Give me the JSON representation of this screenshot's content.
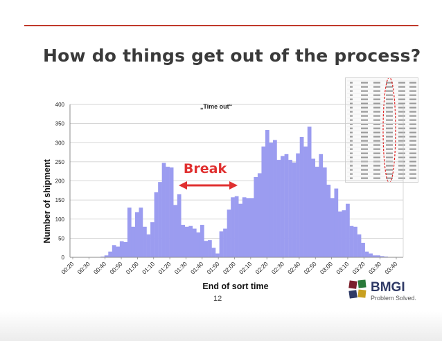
{
  "slide": {
    "title": "How do things get out of the process?",
    "page_number": "12"
  },
  "logo": {
    "name": "BMGI",
    "tagline": "Problem Solved.",
    "colors": [
      "#7b1f2b",
      "#2a7a3a",
      "#2f3a66",
      "#c8a020"
    ]
  },
  "annotations": {
    "break_label": "Break",
    "break_color": "#e03030",
    "timeout_label": "„Time out“"
  },
  "chart_data": {
    "type": "bar",
    "title": "",
    "xlabel": "End of sort time",
    "ylabel": "Number of shipment",
    "ylim": [
      0,
      400
    ],
    "yticks": [
      0,
      50,
      100,
      150,
      200,
      250,
      300,
      350,
      400
    ],
    "xticks": [
      "00:20",
      "00:30",
      "00:40",
      "00:50",
      "01:00",
      "01:10",
      "01:20",
      "01:30",
      "01:40",
      "01:50",
      "02:00",
      "02:10",
      "02:20",
      "02:30",
      "02:40",
      "02:50",
      "03:00",
      "03:10",
      "03:20",
      "03:30",
      "03:40"
    ],
    "bar_color": "#9b9cf0",
    "grid": true,
    "values": [
      0,
      0,
      0,
      0,
      0,
      0,
      0,
      0,
      2,
      5,
      15,
      32,
      28,
      42,
      40,
      130,
      80,
      118,
      130,
      80,
      60,
      92,
      170,
      197,
      247,
      237,
      235,
      137,
      165,
      85,
      80,
      82,
      75,
      65,
      85,
      43,
      45,
      25,
      10,
      68,
      75,
      125,
      157,
      160,
      140,
      157,
      155,
      155,
      210,
      220,
      290,
      333,
      300,
      307,
      255,
      265,
      270,
      255,
      248,
      272,
      315,
      290,
      342,
      258,
      237,
      270,
      235,
      190,
      155,
      180,
      120,
      123,
      140,
      82,
      80,
      60,
      38,
      15,
      10,
      5,
      5,
      3,
      2,
      0,
      0,
      0,
      0
    ]
  }
}
